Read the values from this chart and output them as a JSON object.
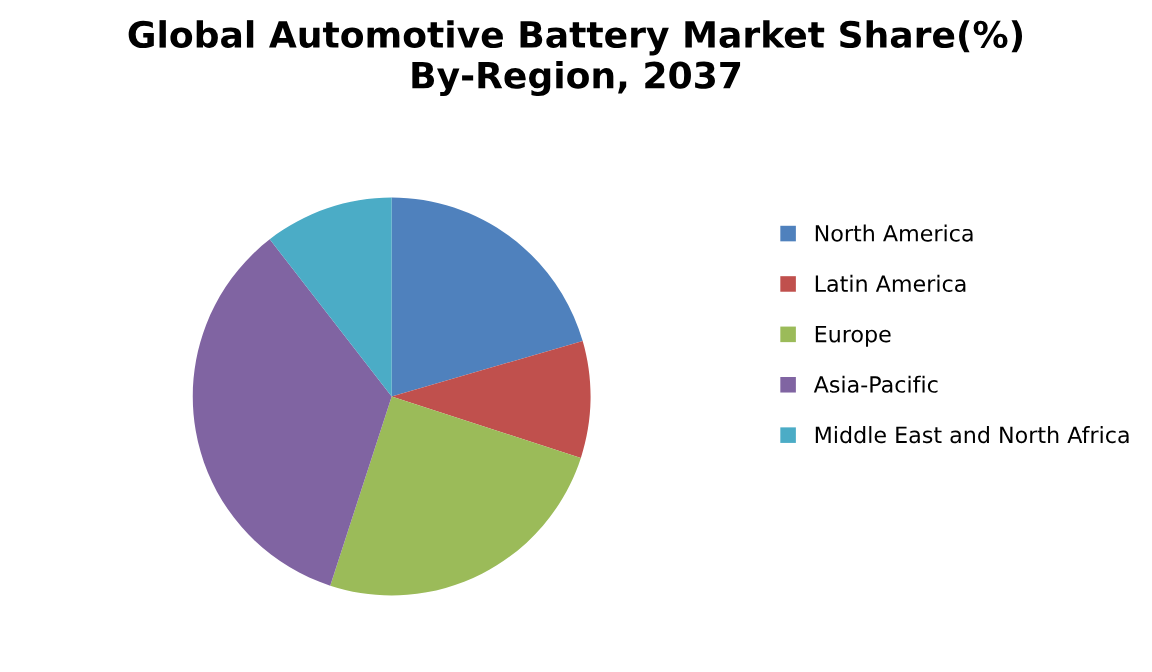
{
  "chart_data": {
    "type": "pie",
    "title": "Global Automotive Battery Market Share(%)\nBy-Region, 2037",
    "categories": [
      "North America",
      "Latin America",
      "Europe",
      "Asia-Pacific",
      "Middle East and North Africa"
    ],
    "values": [
      20.5,
      9.5,
      25,
      34.5,
      10.5
    ],
    "colors": [
      "#4f81bd",
      "#c0504d",
      "#9bbb59",
      "#8064a2",
      "#4bacc6"
    ],
    "legend": "right"
  }
}
